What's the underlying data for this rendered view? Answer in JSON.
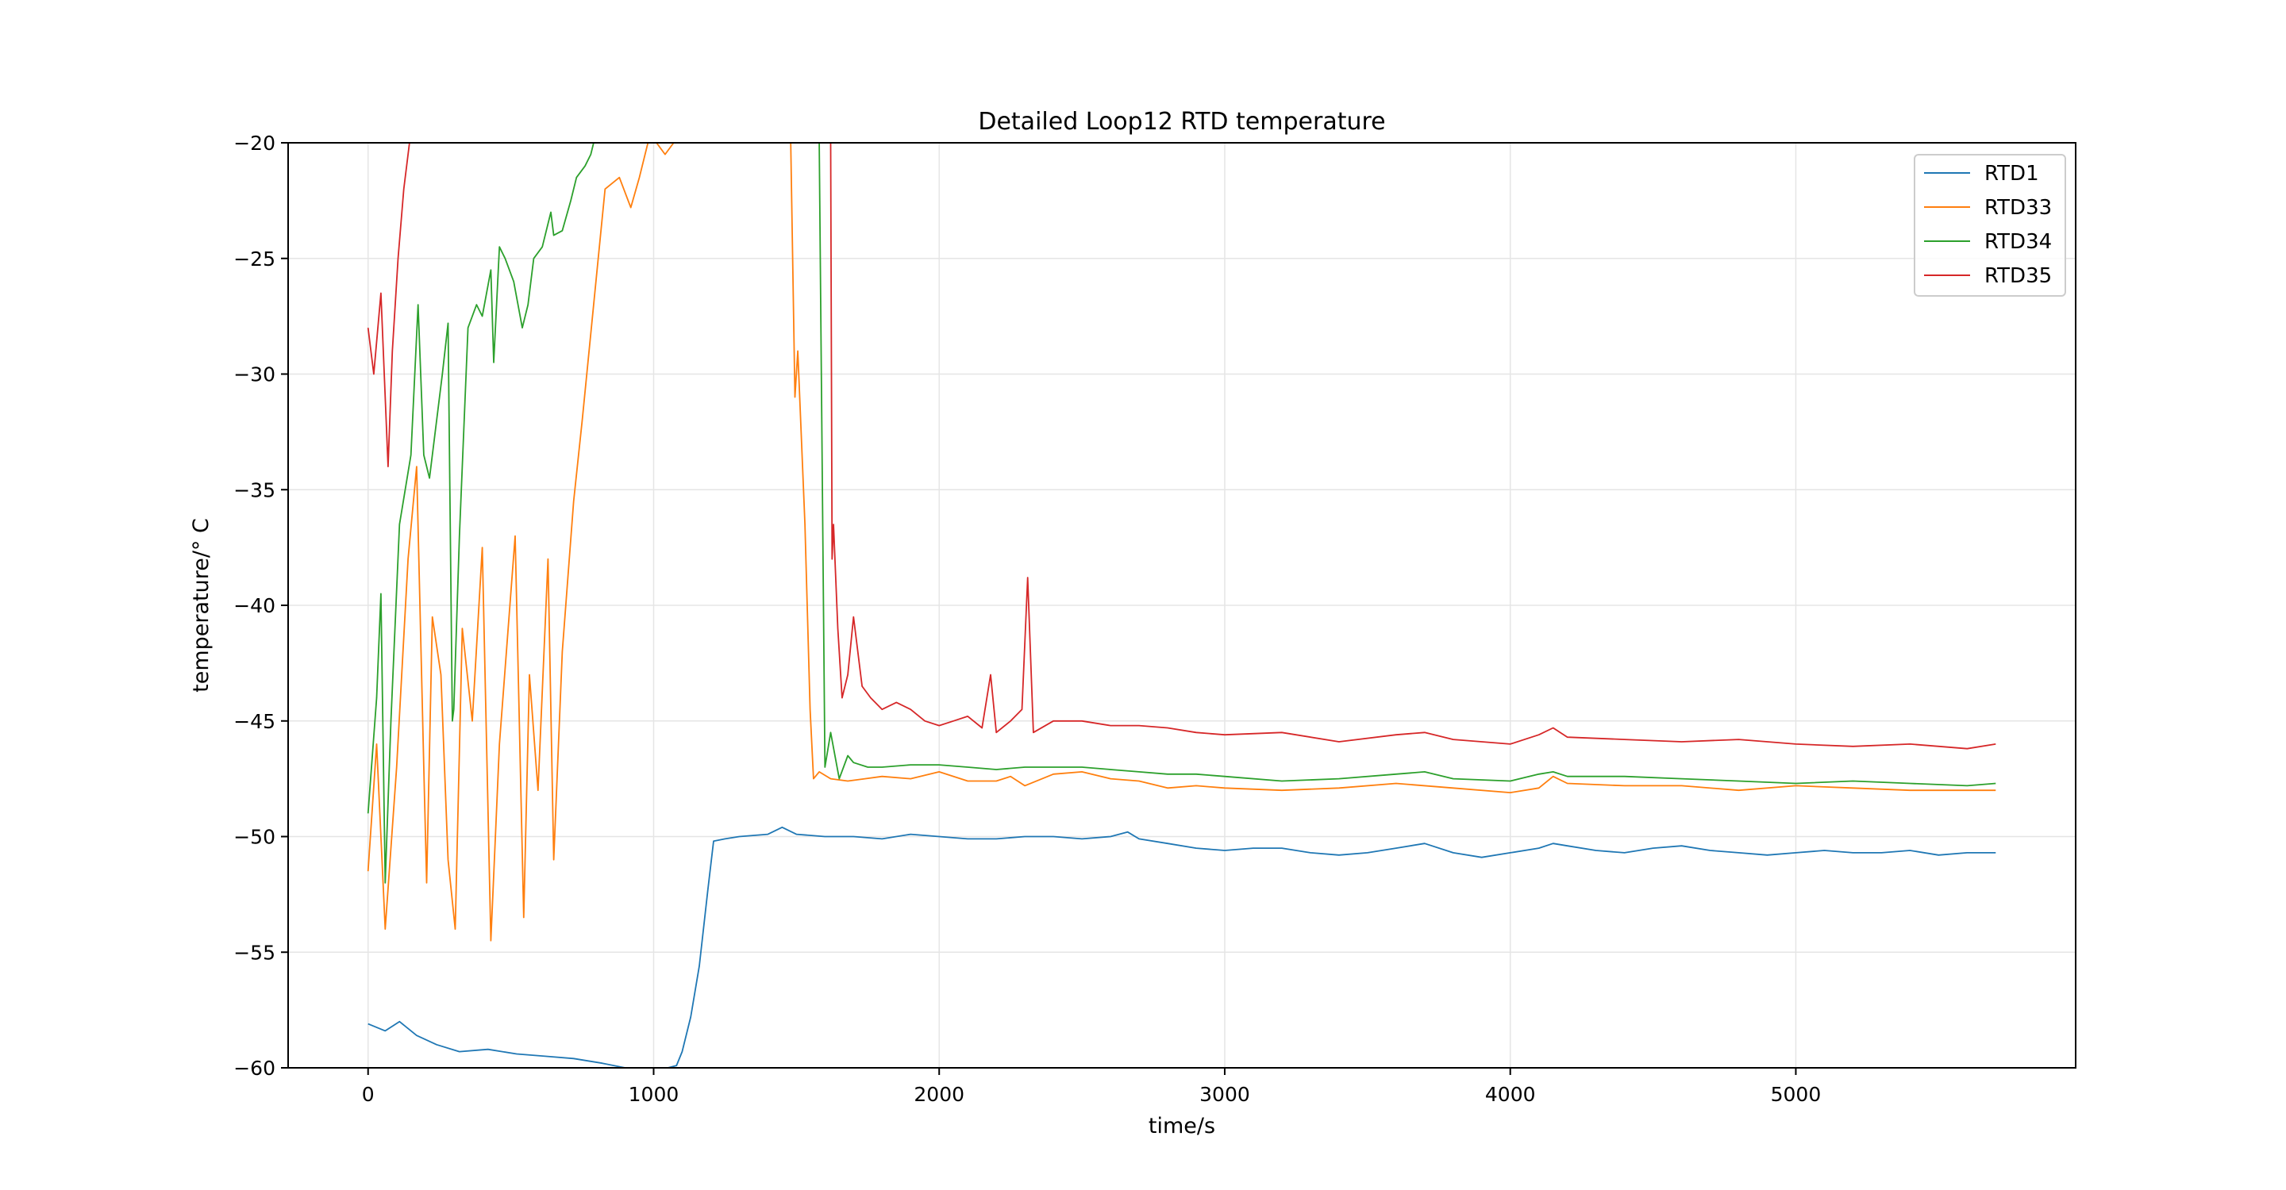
{
  "chart_data": {
    "type": "line",
    "title": "Detailed Loop12 RTD temperature",
    "xlabel": "time/s",
    "ylabel": "temperature/$^\\circ C$",
    "ylabel_display": "temperature/° C",
    "xlim": [
      -280,
      5980
    ],
    "ylim": [
      -60,
      -20
    ],
    "xticks": [
      0,
      1000,
      2000,
      3000,
      4000,
      5000
    ],
    "yticks": [
      -60,
      -55,
      -50,
      -45,
      -40,
      -35,
      -30,
      -25,
      -20
    ],
    "grid": true,
    "legend_position": "top-right",
    "series": [
      {
        "name": "RTD1",
        "color": "#1f77b4",
        "x": [
          0,
          60,
          110,
          170,
          240,
          320,
          420,
          520,
          620,
          720,
          820,
          900,
          960,
          1000,
          1050,
          1080,
          1100,
          1130,
          1160,
          1190,
          1210,
          1250,
          1300,
          1400,
          1450,
          1500,
          1600,
          1700,
          1800,
          1900,
          2000,
          2100,
          2200,
          2300,
          2400,
          2500,
          2600,
          2660,
          2700,
          2800,
          2900,
          3000,
          3100,
          3200,
          3300,
          3400,
          3500,
          3600,
          3700,
          3800,
          3900,
          4000,
          4100,
          4150,
          4200,
          4300,
          4400,
          4500,
          4600,
          4700,
          4800,
          4900,
          5000,
          5100,
          5200,
          5300,
          5400,
          5500,
          5600,
          5700
        ],
        "y": [
          -58.1,
          -58.4,
          -58.0,
          -58.6,
          -59.0,
          -59.3,
          -59.2,
          -59.4,
          -59.5,
          -59.6,
          -59.8,
          -60.0,
          -60.0,
          -60.0,
          -60.0,
          -59.9,
          -59.3,
          -57.8,
          -55.6,
          -52.3,
          -50.2,
          -50.1,
          -50.0,
          -49.9,
          -49.6,
          -49.9,
          -50.0,
          -50.0,
          -50.1,
          -49.9,
          -50.0,
          -50.1,
          -50.1,
          -50.0,
          -50.0,
          -50.1,
          -50.0,
          -49.8,
          -50.1,
          -50.3,
          -50.5,
          -50.6,
          -50.5,
          -50.5,
          -50.7,
          -50.8,
          -50.7,
          -50.5,
          -50.3,
          -50.7,
          -50.9,
          -50.7,
          -50.5,
          -50.3,
          -50.4,
          -50.6,
          -50.7,
          -50.5,
          -50.4,
          -50.6,
          -50.7,
          -50.8,
          -50.7,
          -50.6,
          -50.7,
          -50.7,
          -50.6,
          -50.8,
          -50.7,
          -50.7
        ]
      },
      {
        "name": "RTD33",
        "color": "#ff7f0e",
        "x": [
          0,
          30,
          60,
          100,
          140,
          170,
          195,
          205,
          225,
          255,
          280,
          305,
          330,
          365,
          400,
          430,
          460,
          515,
          545,
          565,
          595,
          630,
          650,
          680,
          720,
          750,
          790,
          830,
          880,
          920,
          950,
          980,
          1010,
          1040,
          1070,
          1085,
          1480,
          1495,
          1505,
          1530,
          1548,
          1560,
          1580,
          1620,
          1680,
          1740,
          1800,
          1900,
          2000,
          2100,
          2200,
          2250,
          2300,
          2400,
          2500,
          2600,
          2700,
          2800,
          2900,
          3000,
          3200,
          3400,
          3600,
          3800,
          4000,
          4100,
          4150,
          4200,
          4400,
          4600,
          4800,
          5000,
          5200,
          5400,
          5600,
          5700
        ],
        "y": [
          -51.5,
          -46.0,
          -54.0,
          -47.0,
          -38.0,
          -34.0,
          -47.0,
          -52.0,
          -40.5,
          -43.0,
          -51.0,
          -54.0,
          -41.0,
          -45.0,
          -37.5,
          -54.5,
          -46.0,
          -37.0,
          -53.5,
          -43.0,
          -48.0,
          -38.0,
          -51.0,
          -42.0,
          -35.5,
          -32.0,
          -27.0,
          -22.0,
          -21.5,
          -22.8,
          -21.5,
          -20.0,
          -20.0,
          -20.5,
          -20.0,
          -20.0,
          -20.0,
          -31.0,
          -29.0,
          -36.5,
          -44.5,
          -47.5,
          -47.2,
          -47.5,
          -47.6,
          -47.5,
          -47.4,
          -47.5,
          -47.2,
          -47.6,
          -47.6,
          -47.4,
          -47.8,
          -47.3,
          -47.2,
          -47.5,
          -47.6,
          -47.9,
          -47.8,
          -47.9,
          -48.0,
          -47.9,
          -47.7,
          -47.9,
          -48.1,
          -47.9,
          -47.4,
          -47.7,
          -47.8,
          -47.8,
          -48.0,
          -47.8,
          -47.9,
          -48.0,
          -48.0,
          -48.0
        ]
      },
      {
        "name": "RTD34",
        "color": "#2ca02c",
        "x": [
          0,
          30,
          45,
          60,
          80,
          110,
          150,
          175,
          195,
          215,
          235,
          260,
          280,
          295,
          300,
          320,
          350,
          380,
          400,
          430,
          440,
          460,
          480,
          510,
          540,
          560,
          580,
          610,
          640,
          650,
          680,
          710,
          730,
          760,
          780,
          790,
          1580,
          1600,
          1620,
          1650,
          1680,
          1700,
          1750,
          1800,
          1900,
          2000,
          2100,
          2200,
          2300,
          2400,
          2500,
          2600,
          2700,
          2800,
          2900,
          3000,
          3200,
          3400,
          3600,
          3700,
          3800,
          4000,
          4100,
          4150,
          4200,
          4400,
          4600,
          4800,
          5000,
          5200,
          5400,
          5600,
          5700
        ],
        "y": [
          -49.0,
          -44.0,
          -39.5,
          -52.0,
          -45.0,
          -36.5,
          -33.5,
          -27.0,
          -33.5,
          -34.5,
          -32.5,
          -30.0,
          -27.8,
          -45.0,
          -44.5,
          -37.0,
          -28.0,
          -27.0,
          -27.5,
          -25.5,
          -29.5,
          -24.5,
          -25.0,
          -26.0,
          -28.0,
          -27.0,
          -25.0,
          -24.5,
          -23.0,
          -24.0,
          -23.8,
          -22.5,
          -21.5,
          -21.0,
          -20.5,
          -20.0,
          -20.0,
          -47.0,
          -45.5,
          -47.5,
          -46.5,
          -46.8,
          -47.0,
          -47.0,
          -46.9,
          -46.9,
          -47.0,
          -47.1,
          -47.0,
          -47.0,
          -47.0,
          -47.1,
          -47.2,
          -47.3,
          -47.3,
          -47.4,
          -47.6,
          -47.5,
          -47.3,
          -47.2,
          -47.5,
          -47.6,
          -47.3,
          -47.2,
          -47.4,
          -47.4,
          -47.5,
          -47.6,
          -47.7,
          -47.6,
          -47.7,
          -47.8,
          -47.7
        ]
      },
      {
        "name": "RTD35",
        "color": "#d62728",
        "x": [
          0,
          20,
          45,
          70,
          85,
          105,
          125,
          145,
          1620,
          1625,
          1630,
          1645,
          1660,
          1680,
          1700,
          1730,
          1760,
          1800,
          1850,
          1900,
          1950,
          2000,
          2050,
          2100,
          2150,
          2180,
          2200,
          2250,
          2290,
          2310,
          2330,
          2400,
          2500,
          2600,
          2700,
          2800,
          2900,
          3000,
          3200,
          3400,
          3600,
          3700,
          3800,
          4000,
          4100,
          4150,
          4200,
          4400,
          4600,
          4800,
          5000,
          5200,
          5400,
          5600,
          5700
        ],
        "y": [
          -28.0,
          -30.0,
          -26.5,
          -34.0,
          -29.0,
          -25.0,
          -22.0,
          -20.0,
          -20.0,
          -38.0,
          -36.5,
          -41.0,
          -44.0,
          -43.0,
          -40.5,
          -43.5,
          -44.0,
          -44.5,
          -44.2,
          -44.5,
          -45.0,
          -45.2,
          -45.0,
          -44.8,
          -45.3,
          -43.0,
          -45.5,
          -45.0,
          -44.5,
          -38.8,
          -45.5,
          -45.0,
          -45.0,
          -45.2,
          -45.2,
          -45.3,
          -45.5,
          -45.6,
          -45.5,
          -45.9,
          -45.6,
          -45.5,
          -45.8,
          -46.0,
          -45.6,
          -45.3,
          -45.7,
          -45.8,
          -45.9,
          -45.8,
          -46.0,
          -46.1,
          -46.0,
          -46.2,
          -46.0
        ]
      }
    ]
  }
}
